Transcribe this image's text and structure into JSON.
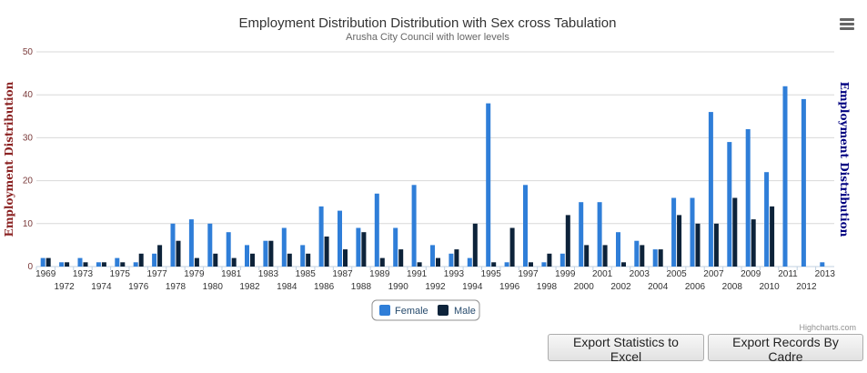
{
  "chart_data": {
    "type": "bar",
    "title": "Employment Distribution Distribution with Sex cross Tabulation",
    "subtitle": "Arusha City Council with lower levels",
    "ylabel_left": "Employment Distribution",
    "ylabel_right": "Employment Distribution",
    "ylim": [
      0,
      50
    ],
    "yticks": [
      0,
      10,
      20,
      30,
      40,
      50
    ],
    "grid": true,
    "legend_position": "bottom-center",
    "categories": [
      "1969",
      "1972",
      "1973",
      "1974",
      "1975",
      "1976",
      "1977",
      "1978",
      "1979",
      "1980",
      "1981",
      "1982",
      "1983",
      "1984",
      "1985",
      "1986",
      "1987",
      "1988",
      "1989",
      "1990",
      "1991",
      "1992",
      "1993",
      "1994",
      "1995",
      "1996",
      "1997",
      "1998",
      "1999",
      "2000",
      "2001",
      "2002",
      "2003",
      "2004",
      "2005",
      "2006",
      "2007",
      "2008",
      "2009",
      "2010",
      "2011",
      "2012",
      "2013"
    ],
    "series": [
      {
        "name": "Female",
        "color": "#2f7ed8",
        "values": [
          2,
          1,
          2,
          1,
          2,
          1,
          3,
          10,
          11,
          10,
          8,
          5,
          6,
          9,
          5,
          14,
          13,
          9,
          17,
          9,
          19,
          5,
          3,
          2,
          38,
          1,
          19,
          1,
          3,
          15,
          15,
          8,
          6,
          4,
          16,
          16,
          36,
          29,
          32,
          22,
          42,
          39,
          1
        ]
      },
      {
        "name": "Male",
        "color": "#0d233a",
        "values": [
          2,
          1,
          1,
          1,
          1,
          3,
          5,
          6,
          2,
          3,
          2,
          3,
          6,
          3,
          3,
          7,
          4,
          8,
          2,
          4,
          1,
          2,
          4,
          10,
          1,
          9,
          1,
          3,
          12,
          5,
          5,
          1,
          5,
          4,
          12,
          10,
          10,
          16,
          11,
          14,
          0,
          0,
          0
        ]
      }
    ]
  },
  "menu_icon": "hamburger-menu-icon",
  "credits": "Highcharts.com",
  "buttons": {
    "export_excel": "Export Statistics to Excel",
    "export_cadre": "Export Records By Cadre"
  }
}
